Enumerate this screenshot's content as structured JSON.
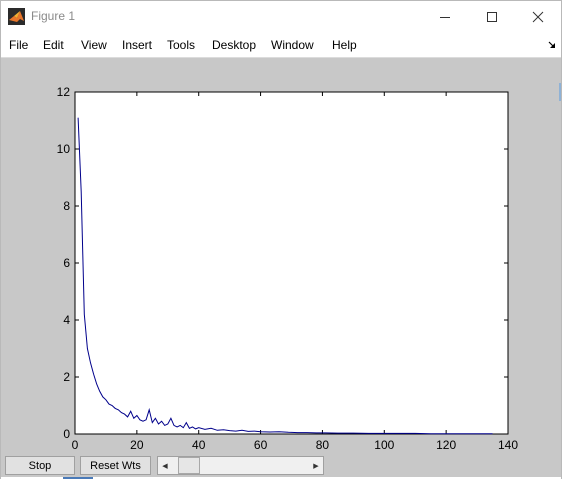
{
  "window": {
    "title": "Figure 1",
    "icon": "matlab-icon"
  },
  "menu": {
    "items": [
      "File",
      "Edit",
      "View",
      "Insert",
      "Tools",
      "Desktop",
      "Window",
      "Help"
    ]
  },
  "controls": {
    "stop_label": "Stop",
    "reset_label": "Reset Wts",
    "slider_value": 0.05
  },
  "colors": {
    "line": "#00008b",
    "background": "#c8c8c8"
  },
  "chart_data": {
    "type": "line",
    "title": "",
    "xlabel": "",
    "ylabel": "",
    "xlim": [
      0,
      140
    ],
    "ylim": [
      0,
      12
    ],
    "xticks": [
      0,
      20,
      40,
      60,
      80,
      100,
      120,
      140
    ],
    "yticks": [
      0,
      2,
      4,
      6,
      8,
      10,
      12
    ],
    "grid": false,
    "series": [
      {
        "values_x": [
          1,
          2,
          3,
          4,
          5,
          6,
          7,
          8,
          9,
          10,
          11,
          12,
          13,
          14,
          15,
          16,
          17,
          18,
          19,
          20,
          21,
          22,
          23,
          24,
          25,
          26,
          27,
          28,
          29,
          30,
          31,
          32,
          33,
          34,
          35,
          36,
          37,
          38,
          39,
          40,
          42,
          44,
          46,
          48,
          50,
          52,
          54,
          56,
          58,
          60,
          63,
          66,
          69,
          72,
          75,
          78,
          81,
          85,
          90,
          95,
          100,
          105,
          110,
          115,
          120,
          125,
          130,
          135
        ],
        "values_y": [
          11.1,
          8.5,
          4.2,
          3.0,
          2.5,
          2.1,
          1.75,
          1.5,
          1.3,
          1.2,
          1.05,
          1.0,
          0.9,
          0.85,
          0.75,
          0.7,
          0.6,
          0.8,
          0.55,
          0.65,
          0.5,
          0.45,
          0.5,
          0.85,
          0.4,
          0.55,
          0.35,
          0.45,
          0.3,
          0.35,
          0.55,
          0.3,
          0.25,
          0.3,
          0.22,
          0.4,
          0.2,
          0.25,
          0.18,
          0.22,
          0.16,
          0.2,
          0.13,
          0.15,
          0.12,
          0.1,
          0.13,
          0.09,
          0.1,
          0.08,
          0.07,
          0.08,
          0.06,
          0.05,
          0.05,
          0.04,
          0.04,
          0.03,
          0.03,
          0.02,
          0.02,
          0.02,
          0.02,
          0.01,
          0.01,
          0.01,
          0.01,
          0.01
        ]
      }
    ]
  }
}
